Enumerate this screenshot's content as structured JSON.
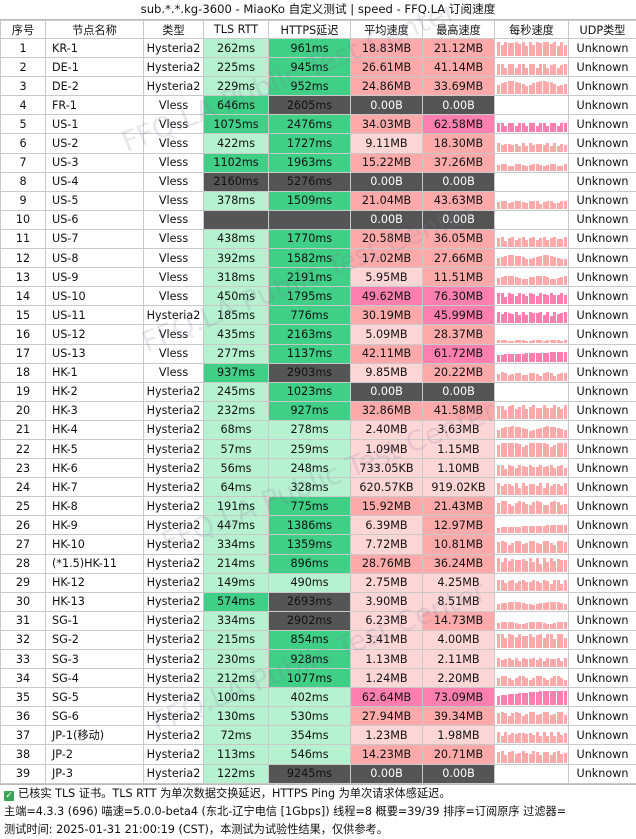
{
  "title": "sub.*.*.kg-3600 - MiaoKo 自定义测试 | speed - FFQ.LA 订阅速度",
  "headers": [
    "序号",
    "节点名称",
    "类型",
    "TLS RTT",
    "HTTPS延迟",
    "平均速度",
    "最高速度",
    "每秒速度",
    "UDP类型"
  ],
  "rows": [
    {
      "idx": "1",
      "name": "KR-1",
      "type": "Hysteria2",
      "tls": "262ms",
      "https": "961ms",
      "avg": "18.83MB",
      "max": "21.12MB",
      "udp": "Unknown"
    },
    {
      "idx": "2",
      "name": "DE-1",
      "type": "Hysteria2",
      "tls": "225ms",
      "https": "945ms",
      "avg": "26.61MB",
      "max": "41.14MB",
      "udp": "Unknown"
    },
    {
      "idx": "3",
      "name": "DE-2",
      "type": "Hysteria2",
      "tls": "229ms",
      "https": "952ms",
      "avg": "24.86MB",
      "max": "33.69MB",
      "udp": "Unknown"
    },
    {
      "idx": "4",
      "name": "FR-1",
      "type": "Vless",
      "tls": "646ms",
      "https": "2605ms",
      "avg": "0.00B",
      "max": "0.00B",
      "udp": "Unknown"
    },
    {
      "idx": "5",
      "name": "US-1",
      "type": "Vless",
      "tls": "1075ms",
      "https": "2476ms",
      "avg": "34.03MB",
      "max": "62.58MB",
      "udp": "Unknown"
    },
    {
      "idx": "6",
      "name": "US-2",
      "type": "Vless",
      "tls": "422ms",
      "https": "1727ms",
      "avg": "9.11MB",
      "max": "18.30MB",
      "udp": "Unknown"
    },
    {
      "idx": "7",
      "name": "US-3",
      "type": "Vless",
      "tls": "1102ms",
      "https": "1963ms",
      "avg": "15.22MB",
      "max": "37.26MB",
      "udp": "Unknown"
    },
    {
      "idx": "8",
      "name": "US-4",
      "type": "Vless",
      "tls": "2160ms",
      "https": "5276ms",
      "avg": "0.00B",
      "max": "0.00B",
      "udp": "Unknown"
    },
    {
      "idx": "9",
      "name": "US-5",
      "type": "Vless",
      "tls": "378ms",
      "https": "1509ms",
      "avg": "21.04MB",
      "max": "43.63MB",
      "udp": "Unknown"
    },
    {
      "idx": "10",
      "name": "US-6",
      "type": "Vless",
      "tls": "",
      "https": "",
      "avg": "0.00B",
      "max": "0.00B",
      "udp": "Unknown"
    },
    {
      "idx": "11",
      "name": "US-7",
      "type": "Vless",
      "tls": "438ms",
      "https": "1770ms",
      "avg": "20.58MB",
      "max": "36.05MB",
      "udp": "Unknown"
    },
    {
      "idx": "12",
      "name": "US-8",
      "type": "Vless",
      "tls": "392ms",
      "https": "1582ms",
      "avg": "17.02MB",
      "max": "27.66MB",
      "udp": "Unknown"
    },
    {
      "idx": "13",
      "name": "US-9",
      "type": "Vless",
      "tls": "318ms",
      "https": "2191ms",
      "avg": "5.95MB",
      "max": "11.51MB",
      "udp": "Unknown"
    },
    {
      "idx": "14",
      "name": "US-10",
      "type": "Vless",
      "tls": "450ms",
      "https": "1795ms",
      "avg": "49.62MB",
      "max": "76.30MB",
      "udp": "Unknown"
    },
    {
      "idx": "15",
      "name": "US-11",
      "type": "Hysteria2",
      "tls": "185ms",
      "https": "776ms",
      "avg": "30.19MB",
      "max": "45.99MB",
      "udp": "Unknown"
    },
    {
      "idx": "16",
      "name": "US-12",
      "type": "Vless",
      "tls": "435ms",
      "https": "2163ms",
      "avg": "5.09MB",
      "max": "28.37MB",
      "udp": "Unknown"
    },
    {
      "idx": "17",
      "name": "US-13",
      "type": "Vless",
      "tls": "277ms",
      "https": "1137ms",
      "avg": "42.11MB",
      "max": "61.72MB",
      "udp": "Unknown"
    },
    {
      "idx": "18",
      "name": "HK-1",
      "type": "Vless",
      "tls": "937ms",
      "https": "2903ms",
      "avg": "9.85MB",
      "max": "20.22MB",
      "udp": "Unknown"
    },
    {
      "idx": "19",
      "name": "HK-2",
      "type": "Hysteria2",
      "tls": "245ms",
      "https": "1023ms",
      "avg": "0.00B",
      "max": "0.00B",
      "udp": "Unknown"
    },
    {
      "idx": "20",
      "name": "HK-3",
      "type": "Hysteria2",
      "tls": "232ms",
      "https": "927ms",
      "avg": "32.86MB",
      "max": "41.58MB",
      "udp": "Unknown"
    },
    {
      "idx": "21",
      "name": "HK-4",
      "type": "Hysteria2",
      "tls": "68ms",
      "https": "278ms",
      "avg": "2.40MB",
      "max": "3.63MB",
      "udp": "Unknown"
    },
    {
      "idx": "22",
      "name": "HK-5",
      "type": "Hysteria2",
      "tls": "57ms",
      "https": "259ms",
      "avg": "1.09MB",
      "max": "1.15MB",
      "udp": "Unknown"
    },
    {
      "idx": "23",
      "name": "HK-6",
      "type": "Hysteria2",
      "tls": "56ms",
      "https": "248ms",
      "avg": "733.05KB",
      "max": "1.10MB",
      "udp": "Unknown"
    },
    {
      "idx": "24",
      "name": "HK-7",
      "type": "Hysteria2",
      "tls": "64ms",
      "https": "328ms",
      "avg": "620.57KB",
      "max": "919.02KB",
      "udp": "Unknown"
    },
    {
      "idx": "25",
      "name": "HK-8",
      "type": "Hysteria2",
      "tls": "191ms",
      "https": "775ms",
      "avg": "15.92MB",
      "max": "21.43MB",
      "udp": "Unknown"
    },
    {
      "idx": "26",
      "name": "HK-9",
      "type": "Hysteria2",
      "tls": "447ms",
      "https": "1386ms",
      "avg": "6.39MB",
      "max": "12.97MB",
      "udp": "Unknown"
    },
    {
      "idx": "27",
      "name": "HK-10",
      "type": "Hysteria2",
      "tls": "334ms",
      "https": "1359ms",
      "avg": "7.72MB",
      "max": "10.81MB",
      "udp": "Unknown"
    },
    {
      "idx": "28",
      "name": "(*1.5)HK-11",
      "type": "Hysteria2",
      "tls": "214ms",
      "https": "896ms",
      "avg": "28.76MB",
      "max": "36.24MB",
      "udp": "Unknown"
    },
    {
      "idx": "29",
      "name": "HK-12",
      "type": "Hysteria2",
      "tls": "149ms",
      "https": "490ms",
      "avg": "2.75MB",
      "max": "4.25MB",
      "udp": "Unknown"
    },
    {
      "idx": "30",
      "name": "HK-13",
      "type": "Hysteria2",
      "tls": "574ms",
      "https": "2693ms",
      "avg": "3.90MB",
      "max": "8.51MB",
      "udp": "Unknown"
    },
    {
      "idx": "31",
      "name": "SG-1",
      "type": "Hysteria2",
      "tls": "334ms",
      "https": "2902ms",
      "avg": "6.23MB",
      "max": "14.73MB",
      "udp": "Unknown"
    },
    {
      "idx": "32",
      "name": "SG-2",
      "type": "Hysteria2",
      "tls": "215ms",
      "https": "854ms",
      "avg": "3.41MB",
      "max": "4.00MB",
      "udp": "Unknown"
    },
    {
      "idx": "33",
      "name": "SG-3",
      "type": "Hysteria2",
      "tls": "230ms",
      "https": "928ms",
      "avg": "1.13MB",
      "max": "2.11MB",
      "udp": "Unknown"
    },
    {
      "idx": "34",
      "name": "SG-4",
      "type": "Hysteria2",
      "tls": "212ms",
      "https": "1077ms",
      "avg": "1.24MB",
      "max": "2.20MB",
      "udp": "Unknown"
    },
    {
      "idx": "35",
      "name": "SG-5",
      "type": "Hysteria2",
      "tls": "100ms",
      "https": "402ms",
      "avg": "62.64MB",
      "max": "73.09MB",
      "udp": "Unknown"
    },
    {
      "idx": "36",
      "name": "SG-6",
      "type": "Hysteria2",
      "tls": "130ms",
      "https": "530ms",
      "avg": "27.94MB",
      "max": "39.34MB",
      "udp": "Unknown"
    },
    {
      "idx": "37",
      "name": "JP-1(移动)",
      "type": "Hysteria2",
      "tls": "72ms",
      "https": "354ms",
      "avg": "1.23MB",
      "max": "1.98MB",
      "udp": "Unknown"
    },
    {
      "idx": "38",
      "name": "JP-2",
      "type": "Hysteria2",
      "tls": "113ms",
      "https": "546ms",
      "avg": "14.23MB",
      "max": "20.71MB",
      "udp": "Unknown"
    },
    {
      "idx": "39",
      "name": "JP-3",
      "type": "Hysteria2",
      "tls": "122ms",
      "https": "9245ms",
      "avg": "0.00B",
      "max": "0.00B",
      "udp": "Unknown"
    }
  ],
  "footer": {
    "line1": "已核实 TLS 证书。TLS RTT 为单次数据交换延迟，HTTPS Ping 为单次请求体感延迟。",
    "line2": "主端=4.3.3 (696) 喵速=5.0.0-beta4 (东北-辽宁电信 [1Gbps]) 线程=8 概要=39/39 排序=订阅原序 过滤器=",
    "line3": "测试时间: 2025-01-31 21:00:19 (CST)，本测试为试验性结果，仅供参考。"
  },
  "watermark": "FFQ.LA Public Test Center",
  "colors": {
    "green_dark": "#3fcf86",
    "green_light": "#b6f2cf",
    "gray_dark": "#555555",
    "pink_light": "#ffd6d6",
    "pink_mid": "#ffaaaa",
    "pink_strong": "#ff80b0"
  }
}
